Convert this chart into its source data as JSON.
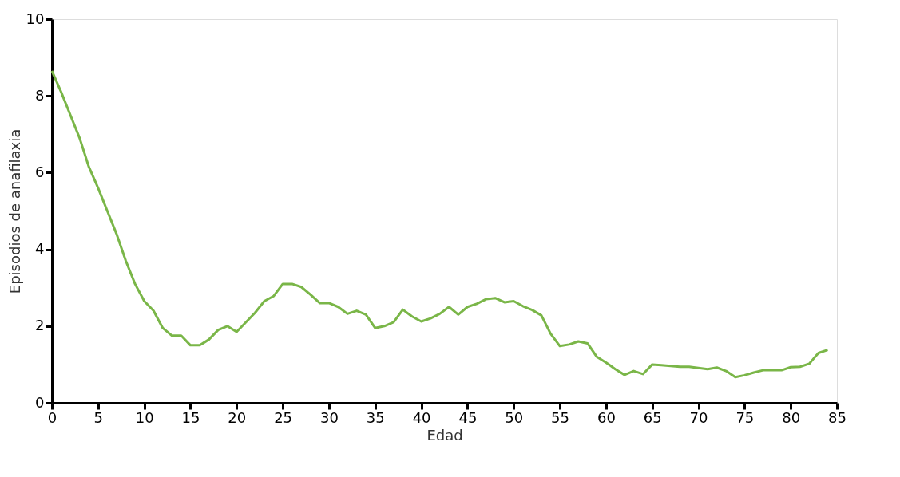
{
  "chart_data": {
    "type": "line",
    "xlabel": "Edad",
    "ylabel": "Episodios de anafilaxia",
    "xlim": [
      0,
      85
    ],
    "xticks": [
      0,
      5,
      10,
      15,
      20,
      25,
      30,
      35,
      40,
      45,
      50,
      55,
      60,
      65,
      70,
      75,
      80,
      85
    ],
    "ylim": [
      0,
      10
    ],
    "yticks": [
      0,
      2,
      4,
      6,
      8,
      10
    ],
    "grid": false,
    "legend": false,
    "marker": "none",
    "line_style": "solid",
    "x": [
      0,
      1,
      2,
      3,
      4,
      5,
      6,
      7,
      8,
      9,
      10,
      11,
      12,
      13,
      14,
      15,
      16,
      17,
      18,
      19,
      20,
      21,
      22,
      23,
      24,
      25,
      26,
      27,
      28,
      29,
      30,
      31,
      32,
      33,
      34,
      35,
      36,
      37,
      38,
      39,
      40,
      41,
      42,
      43,
      44,
      45,
      46,
      47,
      48,
      49,
      50,
      51,
      52,
      53,
      54,
      55,
      56,
      57,
      58,
      59,
      60,
      61,
      62,
      63,
      64,
      65,
      66,
      67,
      68,
      69,
      70,
      71,
      72,
      73,
      74,
      75,
      76,
      77,
      78,
      79,
      80,
      81,
      82,
      83,
      84
    ],
    "series": [
      {
        "color": "#7ab648",
        "values": [
          8.65,
          8.1,
          7.5,
          6.9,
          6.15,
          5.6,
          5.0,
          4.4,
          3.7,
          3.1,
          2.65,
          2.4,
          1.95,
          1.75,
          1.75,
          1.5,
          1.5,
          1.65,
          1.9,
          2.0,
          1.85,
          2.1,
          2.35,
          2.65,
          2.78,
          3.1,
          3.1,
          3.02,
          2.82,
          2.6,
          2.6,
          2.5,
          2.32,
          2.4,
          2.3,
          1.95,
          2.0,
          2.1,
          2.43,
          2.25,
          2.12,
          2.2,
          2.32,
          2.5,
          2.3,
          2.5,
          2.58,
          2.7,
          2.73,
          2.62,
          2.65,
          2.52,
          2.42,
          2.28,
          1.8,
          1.48,
          1.52,
          1.6,
          1.55,
          1.2,
          1.05,
          0.88,
          0.73,
          0.83,
          0.75,
          1.0,
          0.98,
          0.96,
          0.94,
          0.94,
          0.91,
          0.88,
          0.92,
          0.83,
          0.67,
          0.72,
          0.79,
          0.85,
          0.85,
          0.85,
          0.93,
          0.94,
          1.02,
          1.3,
          1.38
        ]
      }
    ]
  }
}
